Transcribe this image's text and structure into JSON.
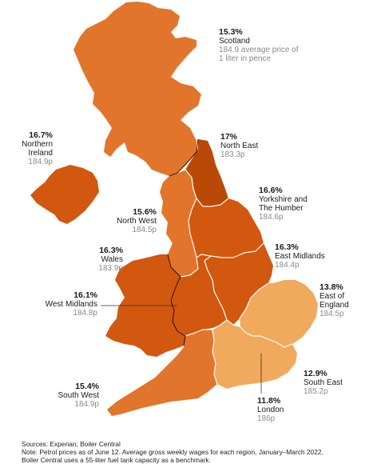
{
  "colors": {
    "c1": "#b94a06",
    "c2": "#d2570f",
    "c3": "#e2752c",
    "c4": "#f1a95e",
    "c5": "#fbd88f"
  },
  "regions": [
    {
      "id": "scotland",
      "pct": "15.3%",
      "name": "Scotland",
      "price": "184.9 average price of 1 liter in pence",
      "color": "#e2752c"
    },
    {
      "id": "northern-ireland",
      "pct": "16.7%",
      "name": "Northern Ireland",
      "price": "184.9p",
      "color": "#d2570f"
    },
    {
      "id": "north-east",
      "pct": "17%",
      "name": "North East",
      "price": "183.3p",
      "color": "#b94a06"
    },
    {
      "id": "yorkshire",
      "pct": "16.6%",
      "name": "Yorkshire and The Humber",
      "price": "184.6p",
      "color": "#d2570f"
    },
    {
      "id": "north-west",
      "pct": "15.6%",
      "name": "North West",
      "price": "184.5p",
      "color": "#e2752c"
    },
    {
      "id": "east-midlands",
      "pct": "16.3%",
      "name": "East Midlands",
      "price": "184.4p",
      "color": "#d2570f"
    },
    {
      "id": "wales",
      "pct": "16.3%",
      "name": "Wales",
      "price": "183.9p",
      "color": "#d2570f"
    },
    {
      "id": "west-midlands",
      "pct": "16.1%",
      "name": "West Midlands",
      "price": "184.8p",
      "color": "#d2570f"
    },
    {
      "id": "east-of-england",
      "pct": "13.8%",
      "name": "East of England",
      "price": "184.5p",
      "color": "#f1a95e"
    },
    {
      "id": "south-east",
      "pct": "12.9%",
      "name": "South East",
      "price": "185.2p",
      "color": "#f1a95e"
    },
    {
      "id": "london",
      "pct": "11.8%",
      "name": "London",
      "price": "186p",
      "color": "#fbd88f"
    },
    {
      "id": "south-west",
      "pct": "15.4%",
      "name": "South West",
      "price": "184.9p",
      "color": "#e2752c"
    }
  ],
  "footer": {
    "sources": "Sources: Experian; Boiler Central",
    "note": "Note: Petrol prices as of June 12. Average gross weekly wages for each region, January–March 2022.",
    "note2": "Boiler Central uses a 55-liter fuel tank capacity as a benchmark."
  }
}
